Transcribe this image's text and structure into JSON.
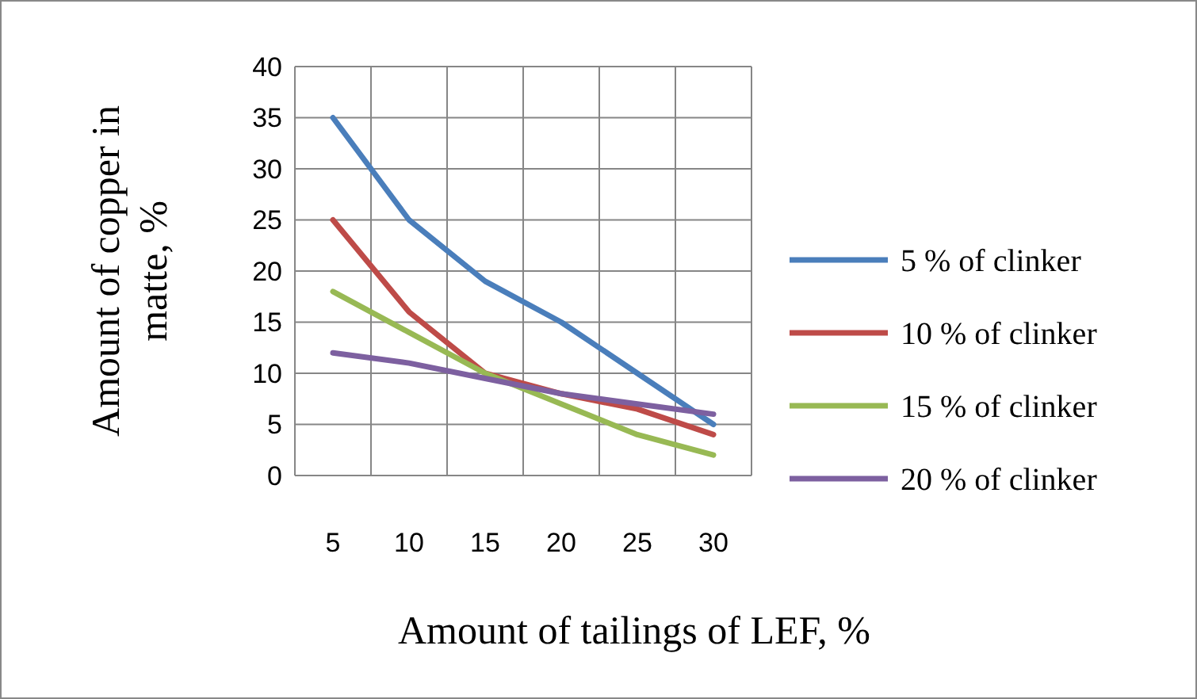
{
  "chart_data": {
    "type": "line",
    "xlabel": "Amount of tailings of LEF, %",
    "ylabel": "Amount of copper in matte, %",
    "categories": [
      "5",
      "10",
      "15",
      "20",
      "25",
      "30"
    ],
    "series": [
      {
        "name": "5 % of clinker",
        "color": "#4a7ebb",
        "values": [
          35,
          25,
          19,
          15,
          10,
          5
        ]
      },
      {
        "name": "10 % of clinker",
        "color": "#be4b48",
        "values": [
          25,
          16,
          10,
          8,
          6.5,
          4
        ]
      },
      {
        "name": "15 % of clinker",
        "color": "#98b954",
        "values": [
          18,
          14,
          10,
          7,
          4,
          2
        ]
      },
      {
        "name": "20 % of clinker",
        "color": "#7d60a0",
        "values": [
          12,
          11,
          9.5,
          8,
          7,
          6
        ]
      }
    ],
    "ylim": [
      0,
      40
    ],
    "yticks": [
      0,
      5,
      10,
      15,
      20,
      25,
      30,
      35,
      40
    ],
    "grid": true,
    "legend": "right",
    "marker": "none",
    "line_style": "solid"
  }
}
